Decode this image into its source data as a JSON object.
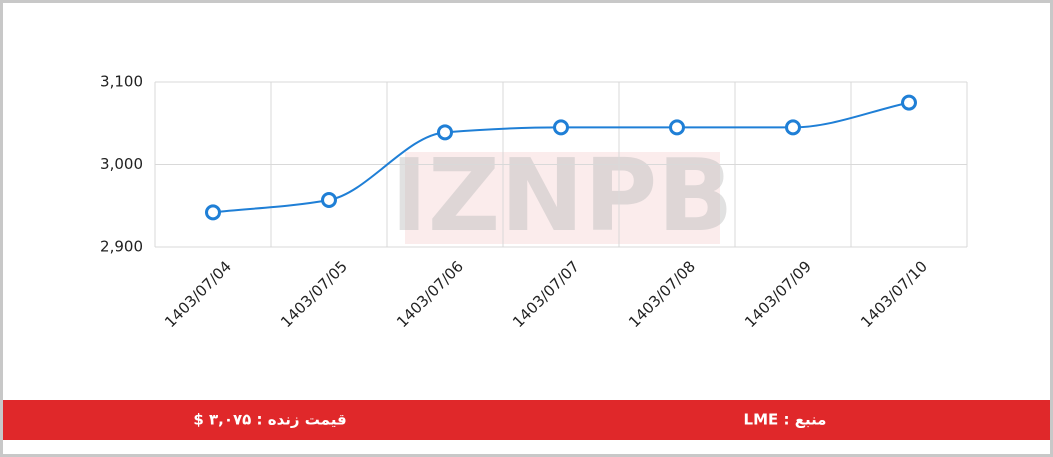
{
  "chart_data": {
    "type": "line",
    "categories": [
      "1403/07/04",
      "1403/07/05",
      "1403/07/06",
      "1403/07/07",
      "1403/07/08",
      "1403/07/09",
      "1403/07/10"
    ],
    "series": [
      {
        "name": "LME",
        "color": "#1f7fd6",
        "values": [
          2942,
          2957,
          3039,
          3045,
          3045,
          3045,
          3075
        ]
      }
    ],
    "ylim": [
      2900,
      3100
    ],
    "yticks": [
      {
        "value": 2900,
        "label": "2,900"
      },
      {
        "value": 3000,
        "label": "3,000"
      },
      {
        "value": 3100,
        "label": "3,100"
      }
    ],
    "grid": true,
    "watermark": "IZNPB"
  },
  "footer": {
    "price": "قیمت زنده : ۳,۰۷۵ $",
    "source": "منبع : LME"
  }
}
